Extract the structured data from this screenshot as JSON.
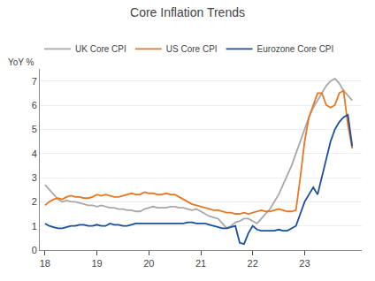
{
  "chart_data": {
    "type": "line",
    "title": "Core Inflation Trends",
    "ylabel": "YoY %",
    "x": [
      18,
      18.083333,
      18.166667,
      18.25,
      18.333333,
      18.416667,
      18.5,
      18.583333,
      18.666667,
      18.75,
      18.833333,
      18.916667,
      19,
      19.083333,
      19.166667,
      19.25,
      19.333333,
      19.416667,
      19.5,
      19.583333,
      19.666667,
      19.75,
      19.833333,
      19.916667,
      20,
      20.083333,
      20.166667,
      20.25,
      20.333333,
      20.416667,
      20.5,
      20.583333,
      20.666667,
      20.75,
      20.833333,
      20.916667,
      21,
      21.083333,
      21.166667,
      21.25,
      21.333333,
      21.416667,
      21.5,
      21.583333,
      21.666667,
      21.75,
      21.833333,
      21.916667,
      22,
      22.083333,
      22.166667,
      22.25,
      22.333333,
      22.416667,
      22.5,
      22.583333,
      22.666667,
      22.75,
      22.833333,
      22.916667,
      23,
      23.083333,
      23.166667,
      23.25,
      23.333333,
      23.416667,
      23.5,
      23.583333,
      23.666667,
      23.75,
      23.833333,
      23.916667
    ],
    "series": [
      {
        "name": "UK Core CPI",
        "color": "#a8a8a8",
        "values": [
          2.7,
          2.5,
          2.3,
          2.1,
          2.0,
          2.05,
          2.0,
          2.0,
          1.95,
          1.9,
          1.85,
          1.85,
          1.8,
          1.85,
          1.8,
          1.75,
          1.75,
          1.7,
          1.7,
          1.65,
          1.65,
          1.6,
          1.6,
          1.7,
          1.75,
          1.8,
          1.75,
          1.75,
          1.75,
          1.8,
          1.8,
          1.75,
          1.75,
          1.7,
          1.65,
          1.7,
          1.6,
          1.5,
          1.4,
          1.35,
          1.3,
          1.1,
          0.9,
          1.0,
          1.15,
          1.2,
          1.3,
          1.3,
          1.2,
          1.1,
          1.3,
          1.5,
          1.7,
          2.0,
          2.3,
          2.7,
          3.1,
          3.5,
          4.0,
          4.5,
          5.0,
          5.5,
          5.9,
          6.2,
          6.5,
          6.8,
          7.0,
          7.1,
          6.9,
          6.6,
          6.4,
          6.2
        ]
      },
      {
        "name": "US Core CPI",
        "color": "#e87722",
        "values": [
          1.85,
          2.0,
          2.1,
          2.15,
          2.1,
          2.2,
          2.25,
          2.2,
          2.2,
          2.15,
          2.15,
          2.2,
          2.3,
          2.25,
          2.3,
          2.25,
          2.2,
          2.2,
          2.25,
          2.3,
          2.35,
          2.3,
          2.3,
          2.4,
          2.35,
          2.35,
          2.3,
          2.3,
          2.35,
          2.3,
          2.3,
          2.2,
          2.1,
          2.0,
          1.9,
          1.85,
          1.8,
          1.75,
          1.7,
          1.65,
          1.65,
          1.6,
          1.55,
          1.55,
          1.5,
          1.5,
          1.55,
          1.5,
          1.55,
          1.6,
          1.65,
          1.6,
          1.6,
          1.65,
          1.7,
          1.65,
          1.6,
          1.6,
          1.65,
          3.0,
          4.5,
          5.5,
          6.0,
          6.5,
          6.5,
          6.0,
          5.9,
          6.0,
          6.5,
          6.6,
          5.2,
          4.2
        ]
      },
      {
        "name": "Eurozone Core CPI",
        "color": "#1a4f9c",
        "values": [
          1.1,
          1.0,
          0.95,
          0.9,
          0.9,
          0.95,
          1.0,
          1.0,
          1.05,
          1.05,
          1.0,
          1.0,
          1.05,
          1.0,
          1.0,
          1.1,
          1.05,
          1.05,
          1.0,
          1.0,
          1.05,
          1.1,
          1.1,
          1.1,
          1.1,
          1.1,
          1.1,
          1.1,
          1.1,
          1.1,
          1.1,
          1.1,
          1.1,
          1.15,
          1.15,
          1.1,
          1.1,
          1.1,
          1.05,
          1.0,
          0.95,
          0.9,
          0.9,
          0.95,
          1.0,
          0.3,
          0.25,
          0.7,
          1.0,
          0.85,
          0.8,
          0.8,
          0.8,
          0.8,
          0.85,
          0.8,
          0.8,
          0.9,
          1.0,
          1.5,
          2.0,
          2.3,
          2.6,
          2.3,
          3.0,
          3.8,
          4.5,
          5.0,
          5.3,
          5.5,
          5.6,
          4.3
        ]
      }
    ],
    "xlim": [
      17.9,
      24.1
    ],
    "xticks": [
      18,
      19,
      20,
      21,
      22,
      23
    ],
    "ylim": [
      0,
      7.5
    ],
    "yticks": [
      0,
      1,
      2,
      3,
      4,
      5,
      6,
      7
    ],
    "grid": true,
    "legend": "upper left"
  }
}
